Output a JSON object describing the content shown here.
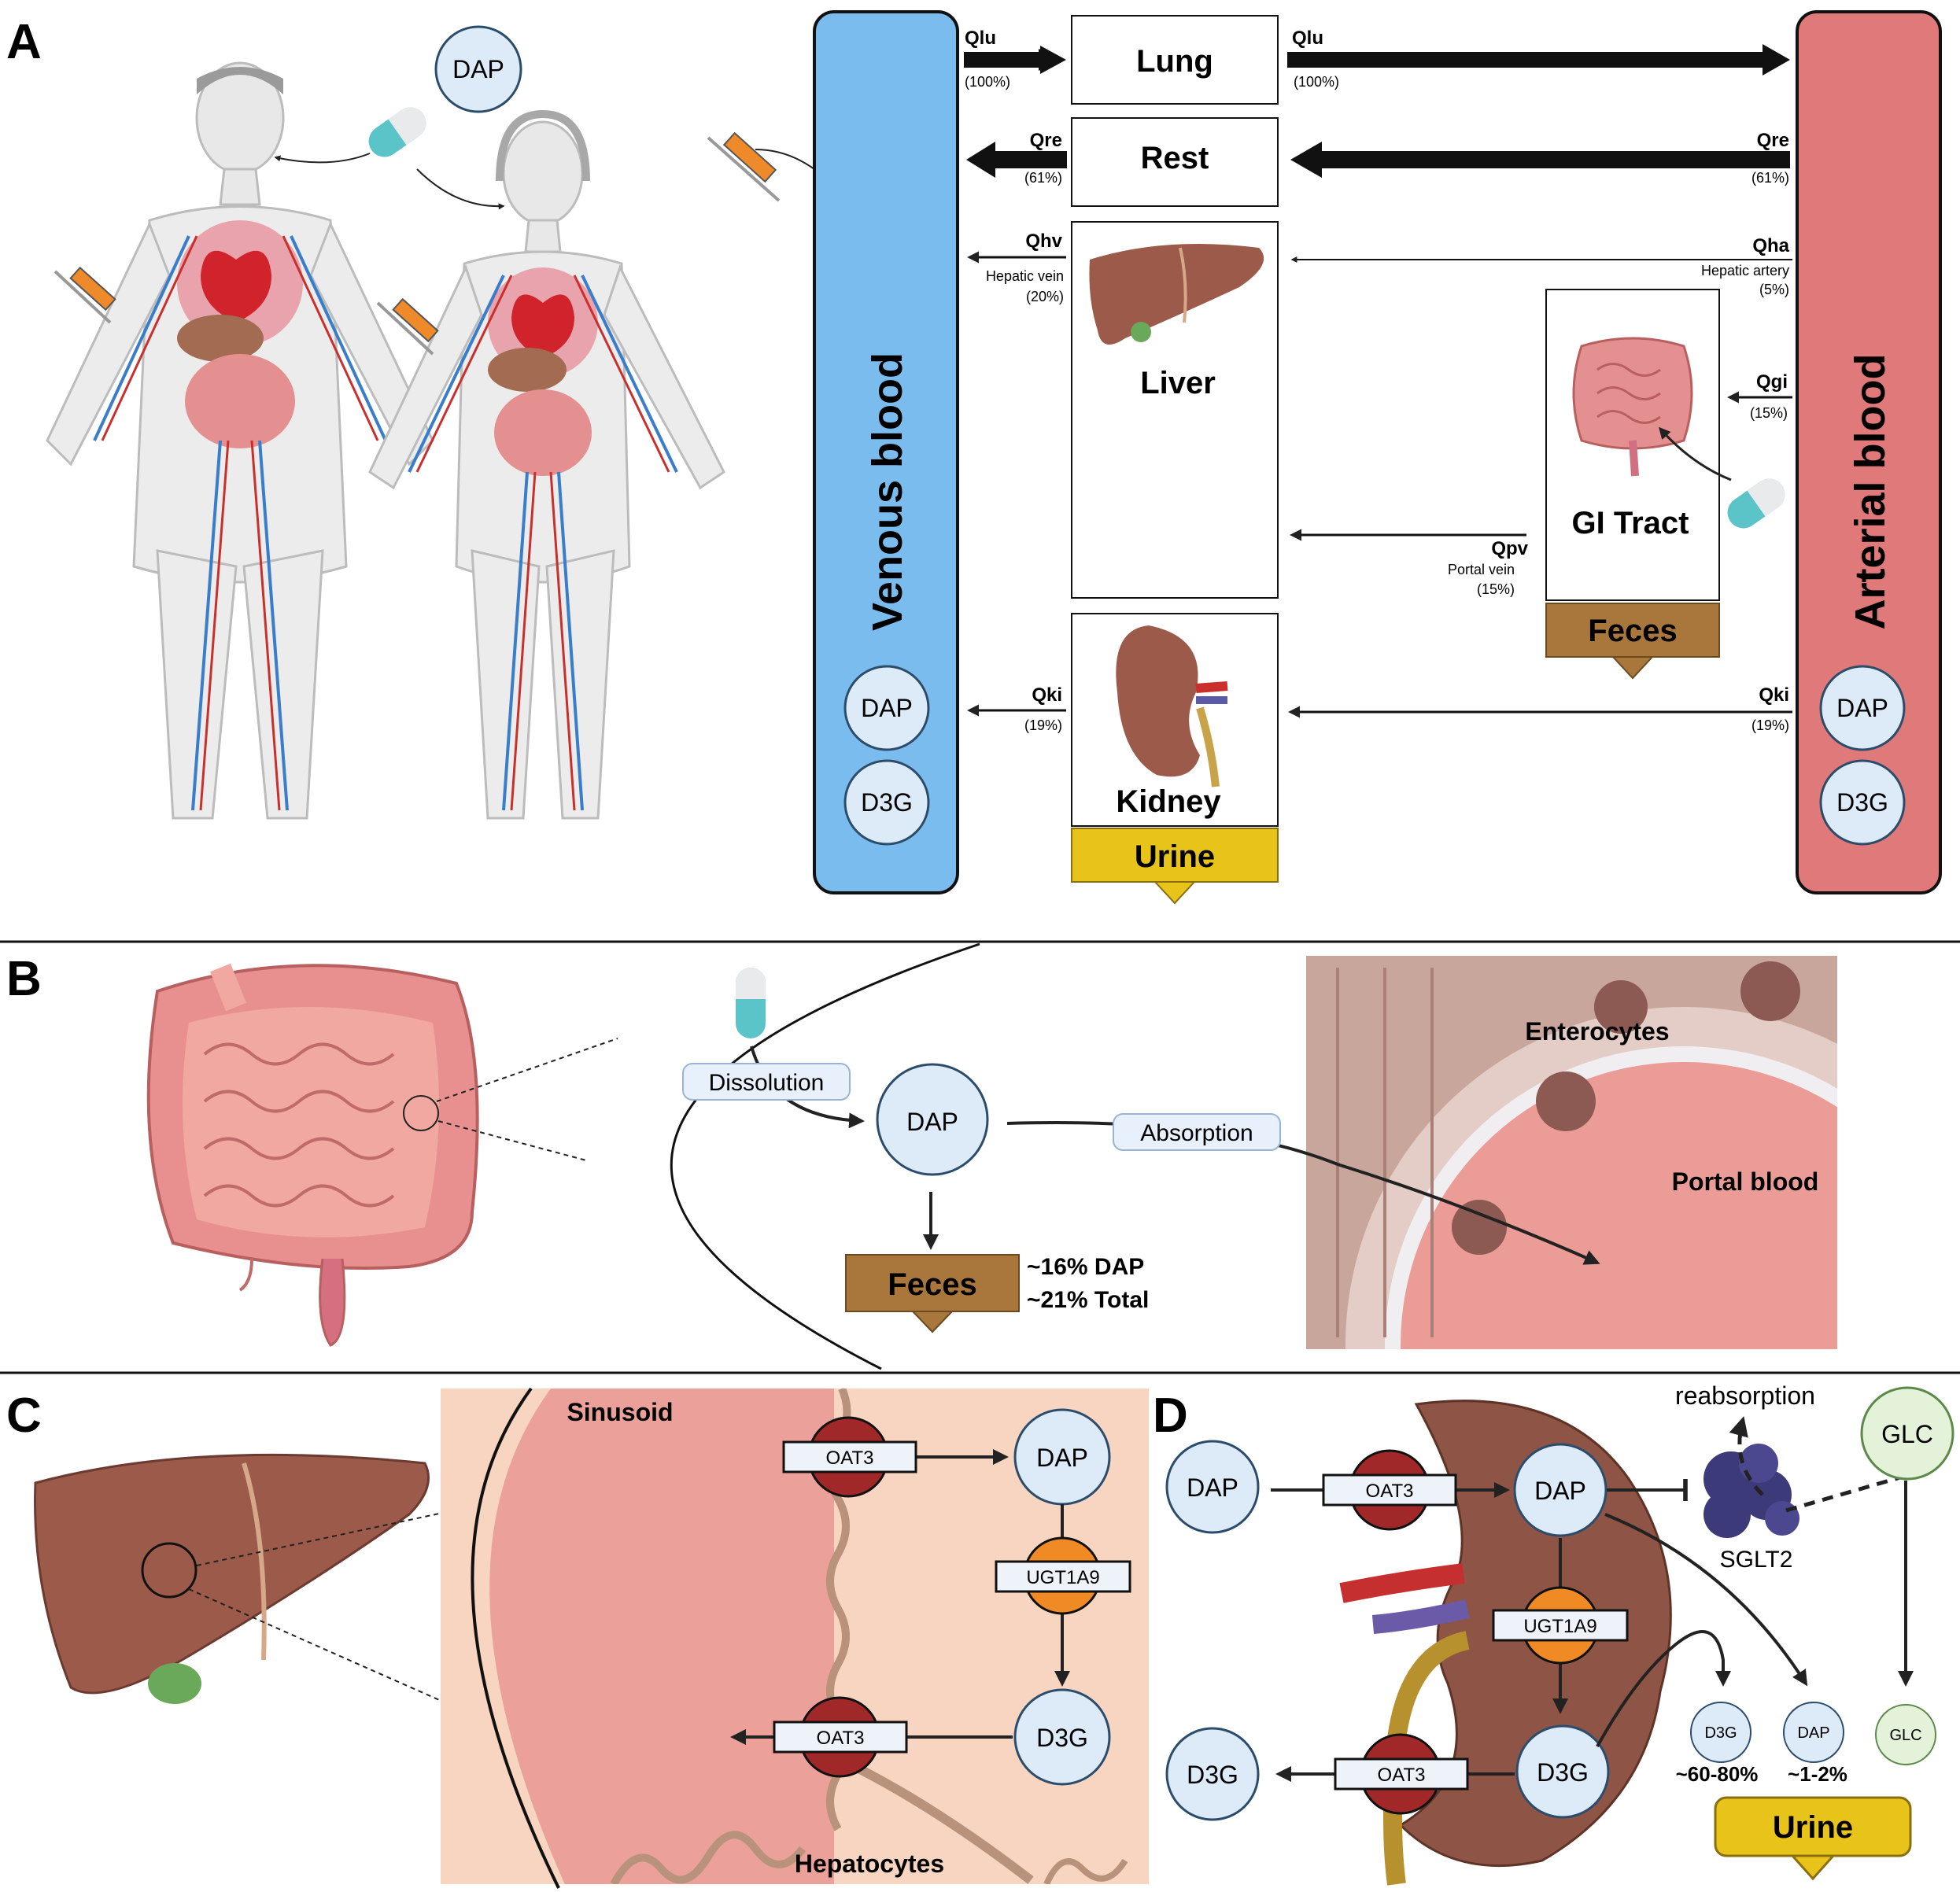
{
  "panels": {
    "a": "A",
    "b": "B",
    "c": "C",
    "d": "D"
  },
  "colors": {
    "venous": "#7bbcee",
    "arterial": "#e07a7a",
    "feces": "#a9773c",
    "urine": "#e8c31a",
    "molecule_fill": "#ddeaf7",
    "oat3": "#a02828",
    "ugt1a9": "#f08a24",
    "glc_fill": "#e3f2d9",
    "sglt2": "#3d3a7a"
  },
  "a": {
    "dap": "DAP",
    "venous_label": "Venous blood",
    "arterial_label": "Arterial blood",
    "organs": {
      "lung": "Lung",
      "rest": "Rest",
      "liver": "Liver",
      "kidney": "Kidney",
      "gi": "GI Tract"
    },
    "feces": "Feces",
    "urine": "Urine",
    "flows": {
      "qlu_v": {
        "name": "Qlu",
        "pct": "(100%)"
      },
      "qlu_a": {
        "name": "Qlu",
        "pct": "(100%)"
      },
      "qre_v": {
        "name": "Qre",
        "pct": "(61%)"
      },
      "qre_a": {
        "name": "Qre",
        "pct": "(61%)"
      },
      "qhv": {
        "name": "Qhv",
        "sub": "Hepatic vein",
        "pct": "(20%)"
      },
      "qha": {
        "name": "Qha",
        "sub": "Hepatic artery",
        "pct": "(5%)"
      },
      "qgi": {
        "name": "Qgi",
        "pct": "(15%)"
      },
      "qpv": {
        "name": "Qpv",
        "sub": "Portal vein",
        "pct": "(15%)"
      },
      "qki_v": {
        "name": "Qki",
        "pct": "(19%)"
      },
      "qki_a": {
        "name": "Qki",
        "pct": "(19%)"
      }
    },
    "ven_mols": [
      "DAP",
      "D3G"
    ],
    "art_mols": [
      "DAP",
      "D3G"
    ]
  },
  "b": {
    "dissolution": "Dissolution",
    "dap": "DAP",
    "absorption": "Absorption",
    "feces": "Feces",
    "stat1": "~16% DAP",
    "stat2": "~21% Total",
    "enterocytes": "Enterocytes",
    "portal": "Portal blood"
  },
  "c": {
    "sinusoid": "Sinusoid",
    "hepatocytes": "Hepatocytes",
    "oat3_in": "OAT3",
    "oat3_out": "OAT3",
    "ugt": "UGT1A9",
    "dap": "DAP",
    "d3g": "D3G"
  },
  "d": {
    "dap_out": "DAP",
    "d3g_out": "D3G",
    "oat3_in": "OAT3",
    "oat3_out": "OAT3",
    "dap_in": "DAP",
    "d3g_in": "D3G",
    "ugt": "UGT1A9",
    "reabsorption": "reabsorption",
    "sglt2": "SGLT2",
    "glc": "GLC",
    "d3g_small": "D3G",
    "dap_small": "DAP",
    "glc_small": "GLC",
    "d3g_pct": "~60-80%",
    "dap_pct": "~1-2%",
    "urine": "Urine"
  }
}
